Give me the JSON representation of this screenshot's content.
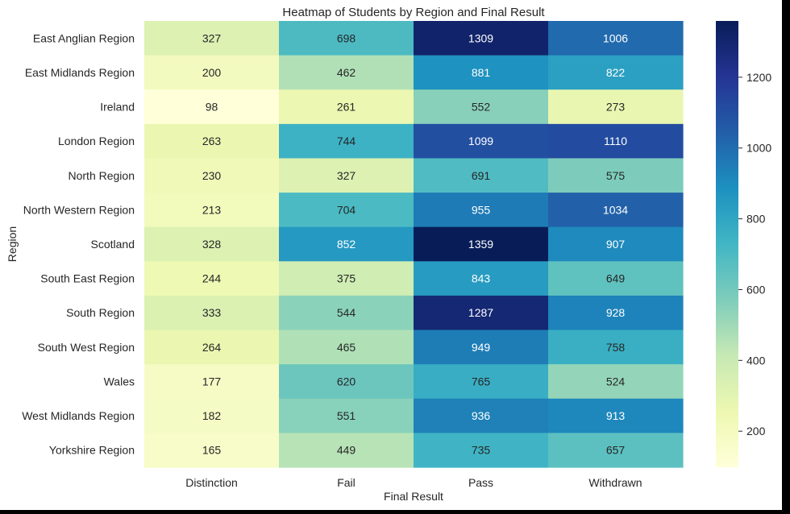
{
  "chart_data": {
    "type": "heatmap",
    "title": "Heatmap of Students by Region and Final Result",
    "xlabel": "Final Result",
    "ylabel": "Region",
    "x_categories": [
      "Distinction",
      "Fail",
      "Pass",
      "Withdrawn"
    ],
    "y_categories": [
      "East Anglian Region",
      "East Midlands Region",
      "Ireland",
      "London Region",
      "North Region",
      "North Western Region",
      "Scotland",
      "South East Region",
      "South Region",
      "South West Region",
      "Wales",
      "West Midlands Region",
      "Yorkshire Region"
    ],
    "values": [
      [
        327,
        698,
        1309,
        1006
      ],
      [
        200,
        462,
        881,
        822
      ],
      [
        98,
        261,
        552,
        273
      ],
      [
        263,
        744,
        1099,
        1110
      ],
      [
        230,
        327,
        691,
        575
      ],
      [
        213,
        704,
        955,
        1034
      ],
      [
        328,
        852,
        1359,
        907
      ],
      [
        244,
        375,
        843,
        649
      ],
      [
        333,
        544,
        1287,
        928
      ],
      [
        264,
        465,
        949,
        758
      ],
      [
        177,
        620,
        765,
        524
      ],
      [
        182,
        551,
        936,
        913
      ],
      [
        165,
        449,
        735,
        657
      ]
    ],
    "colormap": "YlGnBu",
    "vmin": 98,
    "vmax": 1359,
    "colorbar_ticks": [
      200,
      400,
      600,
      800,
      1000,
      1200
    ],
    "annotations": true,
    "grid": false,
    "colors": {
      "background": "#ffffff",
      "frame": "#000000",
      "text": "#262626",
      "annotation_light_bg": "#262626",
      "annotation_dark_bg": "#ffffff"
    }
  }
}
